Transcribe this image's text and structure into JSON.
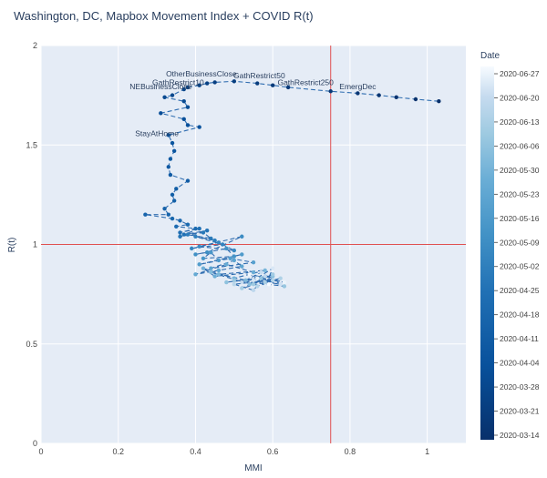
{
  "chart_data": {
    "type": "scatter",
    "title": "Washington, DC, Mapbox Movement Index + COVID R(t)",
    "xlabel": "MMI",
    "ylabel": "R(t)",
    "xlim": [
      0,
      1.1
    ],
    "ylim": [
      0,
      2
    ],
    "x_ticks": [
      0,
      0.2,
      0.4,
      0.6,
      0.8,
      1
    ],
    "x_tick_labels": [
      "0",
      "0.2",
      "0.4",
      "0.6",
      "0.8",
      "1"
    ],
    "y_ticks": [
      0,
      0.5,
      1,
      1.5,
      2
    ],
    "y_tick_labels": [
      "0",
      "0.5",
      "1",
      "1.5",
      "2"
    ],
    "reference_lines": {
      "x": 0.75,
      "y": 1,
      "color": "#e05050"
    },
    "colorbar": {
      "title": "Date",
      "ticks": [
        "2020-06-27",
        "2020-06-20",
        "2020-06-13",
        "2020-06-06",
        "2020-05-30",
        "2020-05-23",
        "2020-05-16",
        "2020-05-09",
        "2020-05-02",
        "2020-04-25",
        "2020-04-18",
        "2020-04-11",
        "2020-04-04",
        "2020-03-28",
        "2020-03-21",
        "2020-03-14"
      ],
      "color_start": "#08306b",
      "color_end": "#f7fbff"
    },
    "annotations": [
      {
        "text": "EmergDec",
        "x": 0.82,
        "y": 1.78
      },
      {
        "text": "GathRestrict250",
        "x": 0.685,
        "y": 1.8
      },
      {
        "text": "GathRestrict50",
        "x": 0.565,
        "y": 1.835
      },
      {
        "text": "OtherBusinessClose",
        "x": 0.415,
        "y": 1.845
      },
      {
        "text": "GathRestrict10",
        "x": 0.355,
        "y": 1.8
      },
      {
        "text": "NEBusinessClose",
        "x": 0.31,
        "y": 1.78
      },
      {
        "text": "StayAtHome",
        "x": 0.3,
        "y": 1.545
      }
    ],
    "series": [
      {
        "start_date": "2020-03-12",
        "line_style": "dash",
        "x": [
          1.03,
          0.97,
          0.92,
          0.875,
          0.82,
          0.75,
          0.64,
          0.6,
          0.56,
          0.5,
          0.45,
          0.43,
          0.41,
          0.38,
          0.37,
          0.34,
          0.32,
          0.37,
          0.38,
          0.31,
          0.37,
          0.38,
          0.41,
          0.33,
          0.34,
          0.345,
          0.335,
          0.33,
          0.335,
          0.38,
          0.35,
          0.34,
          0.345,
          0.32,
          0.33,
          0.27,
          0.34,
          0.36,
          0.38,
          0.35,
          0.4,
          0.36,
          0.41,
          0.37,
          0.43,
          0.36,
          0.42,
          0.44,
          0.38,
          0.45,
          0.4,
          0.47,
          0.39,
          0.46,
          0.5,
          0.41,
          0.52,
          0.43,
          0.4,
          0.48,
          0.5,
          0.42,
          0.44,
          0.46,
          0.52,
          0.41,
          0.49,
          0.55,
          0.44,
          0.5,
          0.52,
          0.46,
          0.4,
          0.48,
          0.55,
          0.45,
          0.42,
          0.5,
          0.58,
          0.46,
          0.53,
          0.44,
          0.54,
          0.6,
          0.48,
          0.57,
          0.63,
          0.5,
          0.55,
          0.6,
          0.52,
          0.58,
          0.62,
          0.56,
          0.6,
          0.5,
          0.55,
          0.58,
          0.52,
          0.57,
          0.62,
          0.55,
          0.6,
          0.58,
          0.56,
          0.63,
          0.54,
          0.59
        ],
        "y": [
          1.72,
          1.73,
          1.74,
          1.75,
          1.76,
          1.77,
          1.79,
          1.8,
          1.81,
          1.82,
          1.815,
          1.81,
          1.8,
          1.79,
          1.78,
          1.75,
          1.74,
          1.72,
          1.69,
          1.66,
          1.63,
          1.6,
          1.59,
          1.55,
          1.51,
          1.47,
          1.43,
          1.39,
          1.35,
          1.32,
          1.28,
          1.25,
          1.22,
          1.18,
          1.15,
          1.15,
          1.13,
          1.12,
          1.1,
          1.09,
          1.08,
          1.06,
          1.08,
          1.05,
          1.07,
          1.04,
          1.06,
          1.03,
          1.05,
          1.02,
          1.04,
          1.0,
          0.98,
          1.01,
          0.97,
          0.99,
          1.04,
          0.96,
          0.95,
          0.98,
          0.94,
          0.93,
          0.96,
          0.92,
          0.95,
          0.9,
          0.93,
          0.91,
          0.88,
          0.92,
          0.89,
          0.87,
          0.85,
          0.9,
          0.86,
          0.84,
          0.88,
          0.83,
          0.87,
          0.85,
          0.82,
          0.86,
          0.8,
          0.84,
          0.81,
          0.83,
          0.79,
          0.82,
          0.8,
          0.85,
          0.78,
          0.81,
          0.83,
          0.79,
          0.82,
          0.8,
          0.77,
          0.84,
          0.81,
          0.86,
          0.8,
          0.82,
          0.88,
          0.79,
          0.83,
          0.81,
          0.85,
          0.8
        ]
      }
    ]
  }
}
